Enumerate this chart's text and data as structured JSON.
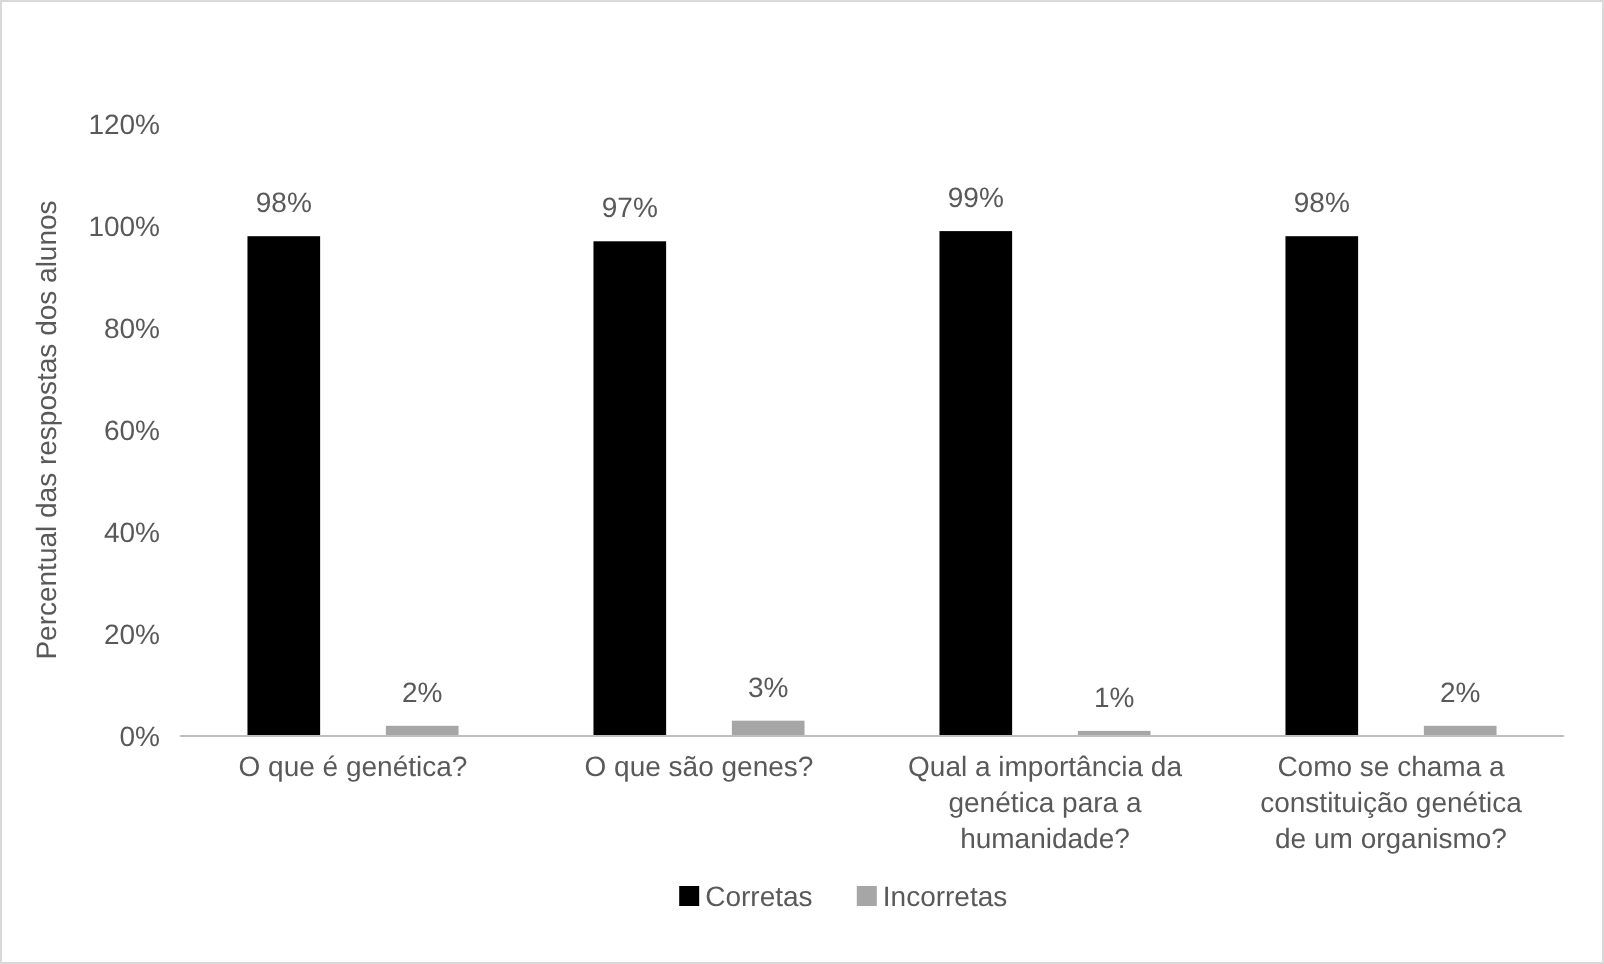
{
  "chart_data": {
    "type": "bar",
    "ylabel": "Percentual das respostas dos alunos",
    "categories": [
      "O que é genética?",
      "O que são genes?",
      "Qual a importância da genética para a humanidade?",
      "Como se chama a constituição genética de um organismo?"
    ],
    "series": [
      {
        "name": "Corretas",
        "color": "#000000",
        "values": [
          98,
          97,
          99,
          98
        ],
        "value_labels": [
          "98%",
          "97%",
          "99%",
          "98%"
        ]
      },
      {
        "name": "Incorretas",
        "color": "#a6a6a6",
        "values": [
          2,
          3,
          1,
          2
        ],
        "value_labels": [
          "2%",
          "3%",
          "1%",
          "2%"
        ]
      }
    ],
    "ylim": [
      0,
      120
    ],
    "yticks": [
      {
        "value": 0,
        "label": "0%"
      },
      {
        "value": 20,
        "label": "20%"
      },
      {
        "value": 40,
        "label": "40%"
      },
      {
        "value": 60,
        "label": "60%"
      },
      {
        "value": 80,
        "label": "80%"
      },
      {
        "value": 100,
        "label": "100%"
      },
      {
        "value": 120,
        "label": "120%"
      }
    ],
    "grid": false,
    "legend": "bottom"
  }
}
